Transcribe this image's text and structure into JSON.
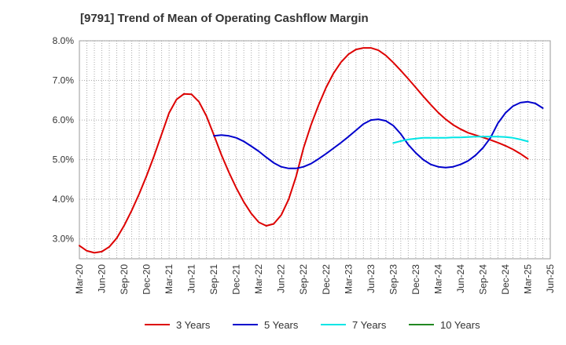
{
  "chart_data": {
    "type": "line",
    "title": "[9791]  Trend of Mean of Operating Cashflow Margin",
    "xlabel": "",
    "ylabel": "",
    "ylim": [
      2.5,
      8.0
    ],
    "y_ticks": [
      3.0,
      4.0,
      5.0,
      6.0,
      7.0,
      8.0
    ],
    "y_tick_labels": [
      "3.0%",
      "4.0%",
      "5.0%",
      "6.0%",
      "7.0%",
      "8.0%"
    ],
    "x_tick_labels": [
      "Mar-20",
      "Jun-20",
      "Sep-20",
      "Dec-20",
      "Mar-21",
      "Jun-21",
      "Sep-21",
      "Dec-21",
      "Mar-22",
      "Jun-22",
      "Sep-22",
      "Dec-22",
      "Mar-23",
      "Jun-23",
      "Sep-23",
      "Dec-23",
      "Mar-24",
      "Jun-24",
      "Sep-24",
      "Dec-24",
      "Mar-25",
      "Jun-25"
    ],
    "grid": true,
    "legend_position": "bottom",
    "series": [
      {
        "name": "3 Years",
        "color": "#dd0000",
        "start_index": 0,
        "values": [
          2.83,
          2.7,
          2.65,
          2.68,
          2.8,
          3.02,
          3.34,
          3.72,
          4.14,
          4.6,
          5.1,
          5.64,
          6.18,
          6.52,
          6.66,
          6.65,
          6.46,
          6.1,
          5.62,
          5.12,
          4.68,
          4.28,
          3.93,
          3.64,
          3.42,
          3.33,
          3.38,
          3.6,
          4.0,
          4.58,
          5.3,
          5.88,
          6.38,
          6.82,
          7.18,
          7.46,
          7.66,
          7.78,
          7.82,
          7.82,
          7.76,
          7.63,
          7.45,
          7.25,
          7.04,
          6.82,
          6.6,
          6.39,
          6.19,
          6.02,
          5.88,
          5.77,
          5.68,
          5.62,
          5.56,
          5.5,
          5.43,
          5.35,
          5.26,
          5.15,
          5.02
        ]
      },
      {
        "name": "5 Years",
        "color": "#0000cc",
        "start_index": 18,
        "values": [
          5.6,
          5.62,
          5.6,
          5.55,
          5.46,
          5.34,
          5.21,
          5.06,
          4.92,
          4.82,
          4.78,
          4.78,
          4.82,
          4.9,
          5.02,
          5.15,
          5.29,
          5.43,
          5.58,
          5.74,
          5.9,
          6.0,
          6.02,
          5.98,
          5.86,
          5.65,
          5.38,
          5.17,
          5.0,
          4.88,
          4.82,
          4.8,
          4.82,
          4.88,
          4.97,
          5.11,
          5.3,
          5.55,
          5.92,
          6.18,
          6.35,
          6.44,
          6.46,
          6.42,
          6.3
        ]
      },
      {
        "name": "7 Years",
        "color": "#00e5e5",
        "start_index": 42,
        "values": [
          5.42,
          5.47,
          5.51,
          5.53,
          5.55,
          5.55,
          5.55,
          5.55,
          5.56,
          5.56,
          5.57,
          5.58,
          5.58,
          5.58,
          5.58,
          5.57,
          5.55,
          5.51,
          5.46
        ]
      },
      {
        "name": "10 Years",
        "color": "#228822",
        "start_index": 0,
        "values": []
      }
    ]
  }
}
